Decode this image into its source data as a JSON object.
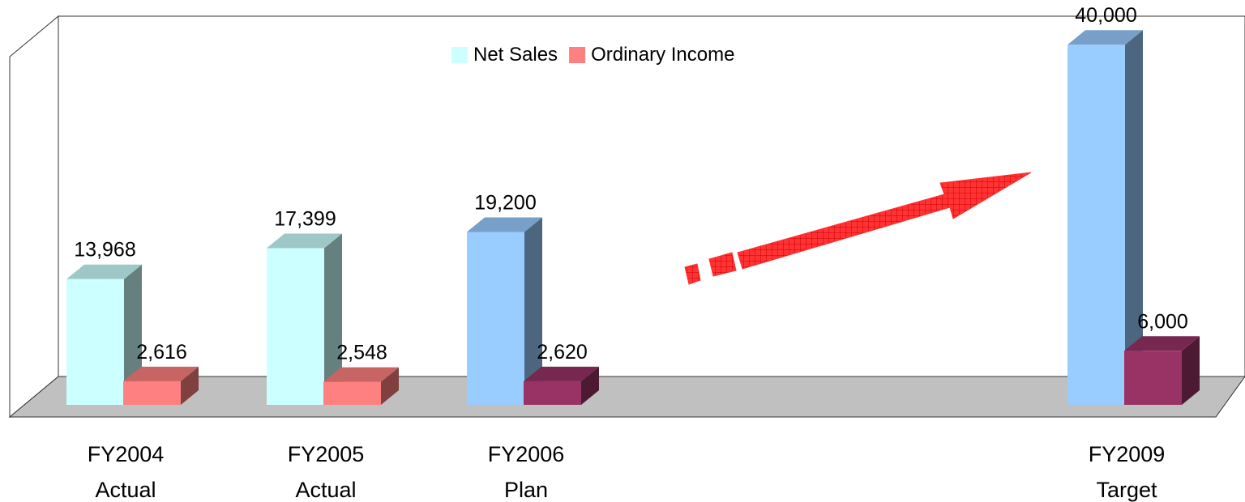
{
  "chart_data": {
    "type": "bar3d",
    "categories": [
      [
        "FY2004",
        "Actual"
      ],
      [
        "FY2005",
        "Actual"
      ],
      [
        "FY2006",
        "Plan"
      ],
      null,
      null,
      [
        "FY2009",
        "Target"
      ]
    ],
    "series": [
      {
        "name": "Net Sales",
        "color": "#ccffff",
        "colors": [
          "#ccffff",
          "#ccffff",
          "#99ccff",
          null,
          null,
          "#99ccff"
        ],
        "values": [
          13968,
          17399,
          19200,
          null,
          null,
          40000
        ],
        "value_labels": [
          "13,968",
          "17,399",
          "19,200",
          null,
          null,
          "40,000"
        ]
      },
      {
        "name": "Ordinary Income",
        "color": "#ff8080",
        "colors": [
          "#ff8080",
          "#ff8080",
          "#993366",
          null,
          null,
          "#993366"
        ],
        "values": [
          2616,
          2548,
          2620,
          null,
          null,
          6000
        ],
        "value_labels": [
          "2,616",
          "2,548",
          "2,620",
          null,
          null,
          "6,000"
        ]
      }
    ],
    "ylim": [
      0,
      42000
    ],
    "legend": "top"
  }
}
